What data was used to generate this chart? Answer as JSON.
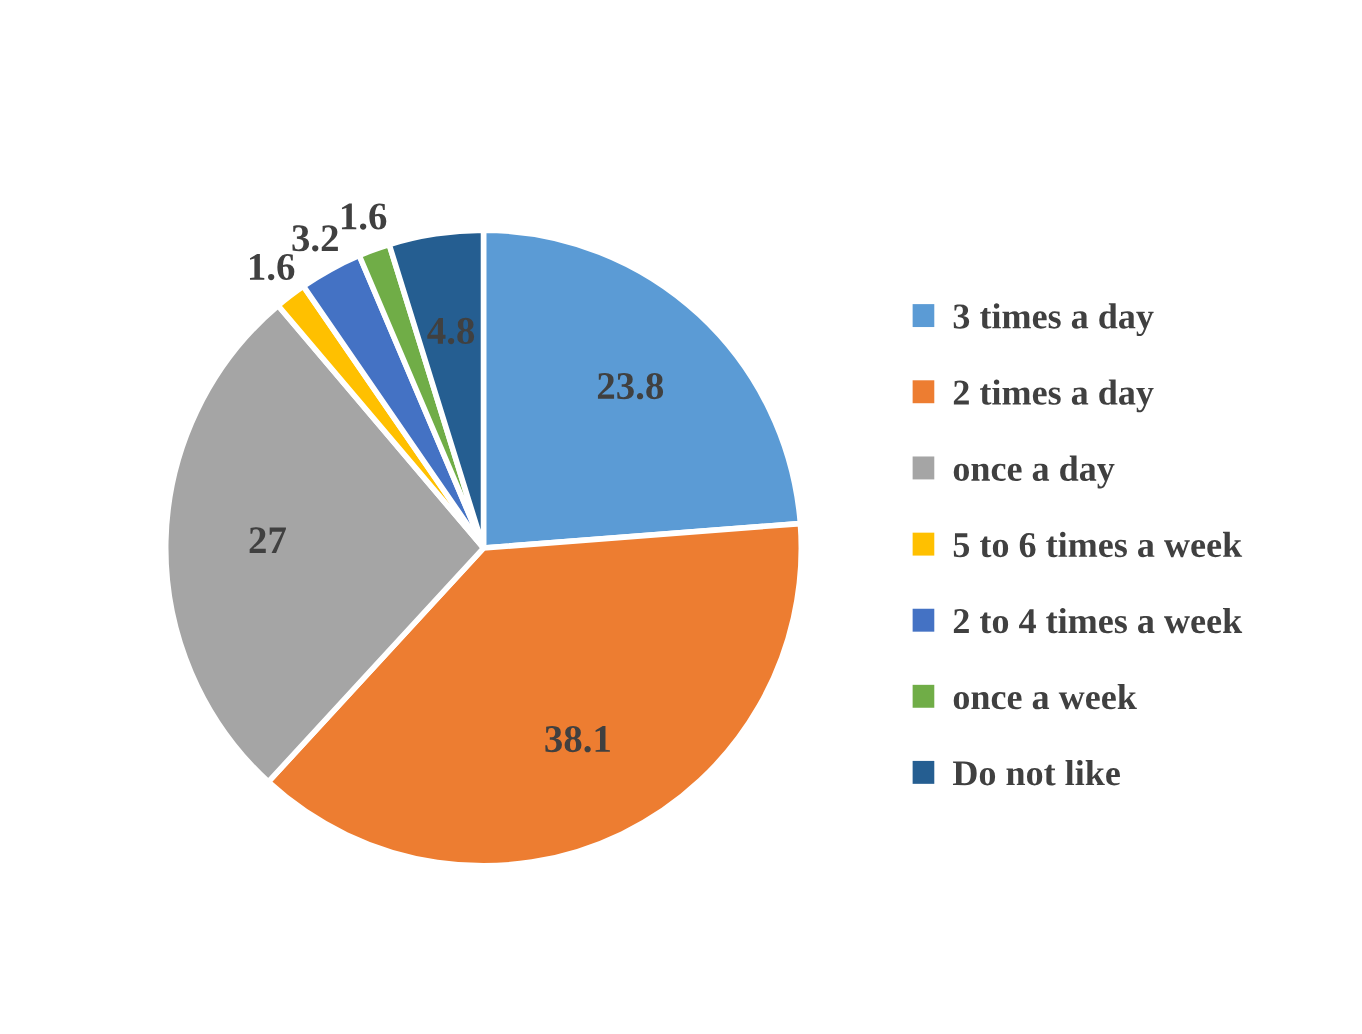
{
  "chart_data": {
    "type": "pie",
    "categories": [
      "3 times a day",
      "2 times a day",
      "once a day",
      "5 to 6 times a week",
      "2 to 4 times a week",
      "once a week",
      "Do not like"
    ],
    "values": [
      23.8,
      38.1,
      27,
      1.6,
      3.2,
      1.6,
      4.8
    ],
    "colors": [
      "#5b9bd5",
      "#ed7d31",
      "#a5a5a5",
      "#ffc000",
      "#4472c4",
      "#70ad47",
      "#255e91"
    ],
    "data_labels": true,
    "legend": "right"
  }
}
